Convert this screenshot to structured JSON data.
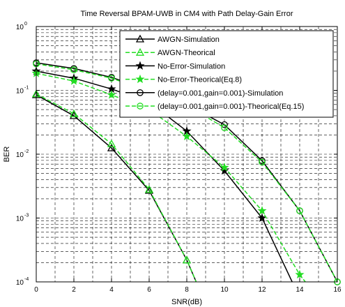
{
  "chart_data": {
    "type": "line",
    "title": "Time Reversal BPAM-UWB in CM4 with Path Delay-Gain Error",
    "xlabel": "SNR(dB)",
    "ylabel": "BER",
    "xlim": [
      0,
      16
    ],
    "ylim": [
      0.0001,
      1
    ],
    "yscale": "log",
    "grid": true,
    "legend_position": "top-right",
    "x_ticks": [
      "0",
      "2",
      "4",
      "6",
      "8",
      "10",
      "12",
      "14",
      "16"
    ],
    "y_ticks": [
      {
        "base": "10",
        "exp": "0",
        "value": 1
      },
      {
        "base": "10",
        "exp": "-1",
        "value": 0.1
      },
      {
        "base": "10",
        "exp": "-2",
        "value": 0.01
      },
      {
        "base": "10",
        "exp": "-3",
        "value": 0.001
      },
      {
        "base": "10",
        "exp": "-4",
        "value": 0.0001
      }
    ],
    "series": [
      {
        "name": "AWGN-Simulation",
        "color": "#000000",
        "dash": "solid",
        "marker": "triangle",
        "x": [
          0,
          2,
          4,
          6,
          8,
          8.5
        ],
        "y": [
          0.085,
          0.04,
          0.0125,
          0.0027,
          0.00022,
          0.0001
        ]
      },
      {
        "name": "AWGN-Theorical",
        "color": "#22dd22",
        "dash": "dashed",
        "marker": "triangle",
        "x": [
          0,
          2,
          4,
          6,
          8,
          8.5
        ],
        "y": [
          0.088,
          0.043,
          0.0145,
          0.0028,
          0.00022,
          0.0001
        ]
      },
      {
        "name": "No-Error-Simulation",
        "color": "#000000",
        "dash": "solid",
        "marker": "star",
        "x": [
          0,
          2,
          4,
          6,
          8,
          10,
          12,
          13.6
        ],
        "y": [
          0.2,
          0.155,
          0.105,
          0.065,
          0.023,
          0.0055,
          0.001,
          0.0001
        ]
      },
      {
        "name": "No-Error-Theorical(Eq.8)",
        "color": "#22dd22",
        "dash": "dashed",
        "marker": "star",
        "x": [
          0,
          2,
          4,
          6,
          8,
          10,
          12,
          14,
          14.3
        ],
        "y": [
          0.185,
          0.14,
          0.085,
          0.05,
          0.019,
          0.0062,
          0.0013,
          0.00013,
          0.0001
        ]
      },
      {
        "name": "(delay=0.001,gain=0.001)-Simulation",
        "color": "#000000",
        "dash": "solid",
        "marker": "circle",
        "x": [
          0,
          2,
          4,
          6,
          8,
          10,
          12,
          14,
          16
        ],
        "y": [
          0.27,
          0.22,
          0.16,
          0.1,
          0.06,
          0.029,
          0.0079,
          0.0013,
          0.0001
        ]
      },
      {
        "name": "(delay=0.001,gain=0.001)-Theorical(Eq.15)",
        "color": "#22dd22",
        "dash": "dashed",
        "marker": "circle",
        "x": [
          0,
          2,
          4,
          6,
          8,
          10,
          12,
          14,
          16
        ],
        "y": [
          0.26,
          0.21,
          0.155,
          0.097,
          0.058,
          0.026,
          0.0075,
          0.0013,
          0.0001
        ]
      }
    ]
  }
}
